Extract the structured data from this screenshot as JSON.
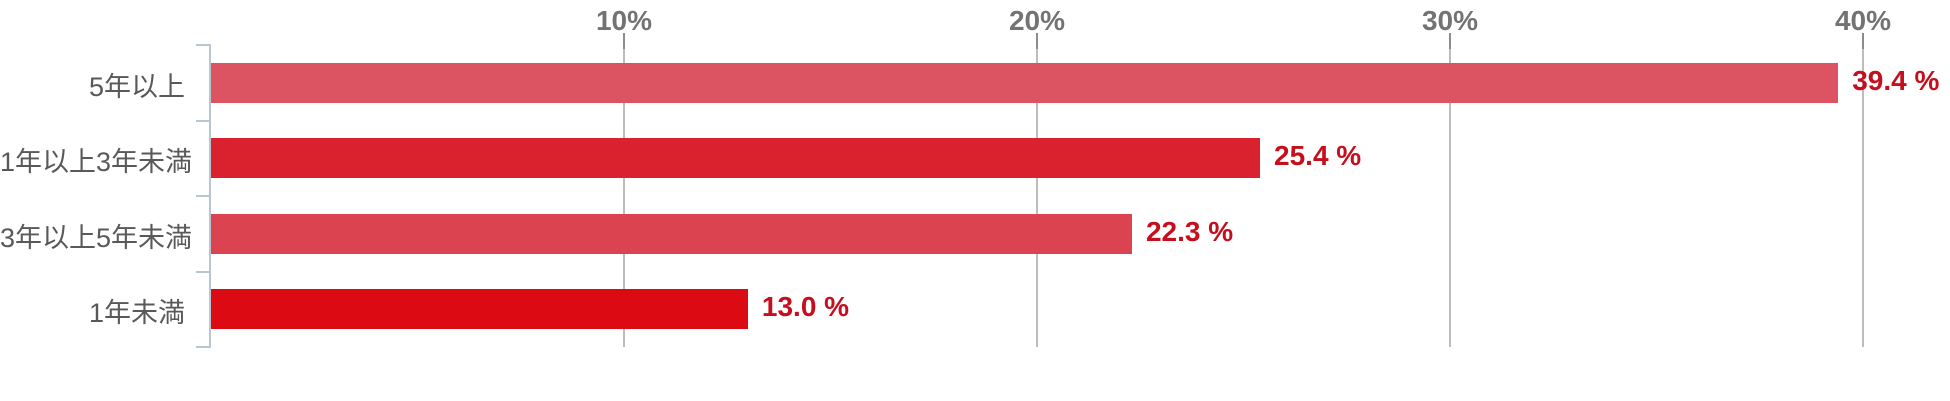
{
  "chart_data": {
    "type": "bar",
    "orientation": "horizontal",
    "title": "",
    "xlabel": "",
    "ylabel": "",
    "legend": false,
    "grid": true,
    "categories": [
      "5年以上",
      "1年以上3年未満",
      "3年以上5年未満",
      "1年未満"
    ],
    "values": [
      39.4,
      25.4,
      22.3,
      13.0
    ],
    "value_labels": [
      "39.4 %",
      "25.4 %",
      "22.3 %",
      "13.0 %"
    ],
    "bar_colors": [
      "#dc5462",
      "#d9222e",
      "#db4350",
      "#dc0a12"
    ],
    "value_label_color": "#c60e1c",
    "category_label_color": "#595959",
    "axis": {
      "xlim": [
        0,
        42
      ],
      "tick_values": [
        10,
        20,
        30,
        40
      ],
      "tick_labels": [
        "10%",
        "20%",
        "30%",
        "40%"
      ],
      "tick_label_color": "#737373",
      "tick_mark_color": "#8c8c8c",
      "gridline_color": "#bdbdbd",
      "axis_line_color": "#b7c6d0"
    }
  }
}
